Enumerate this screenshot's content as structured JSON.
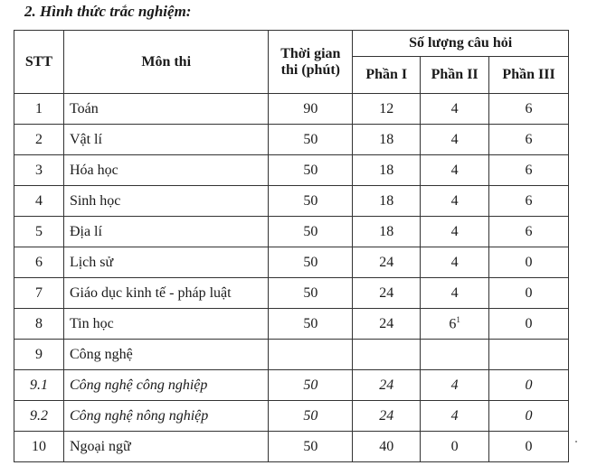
{
  "title": "2. Hình thức trắc nghiệm:",
  "headers": {
    "stt": "STT",
    "mon": "Môn thi",
    "time": "Thời gian thi (phút)",
    "group": "Số lượng câu hỏi",
    "p1": "Phần I",
    "p2": "Phần II",
    "p3": "Phần III"
  },
  "rows": [
    {
      "stt": "1",
      "mon": "Toán",
      "time": "90",
      "p1": "12",
      "p2": "4",
      "p3": "6"
    },
    {
      "stt": "2",
      "mon": "Vật lí",
      "time": "50",
      "p1": "18",
      "p2": "4",
      "p3": "6"
    },
    {
      "stt": "3",
      "mon": "Hóa học",
      "time": "50",
      "p1": "18",
      "p2": "4",
      "p3": "6"
    },
    {
      "stt": "4",
      "mon": "Sinh học",
      "time": "50",
      "p1": "18",
      "p2": "4",
      "p3": "6"
    },
    {
      "stt": "5",
      "mon": "Địa lí",
      "time": "50",
      "p1": "18",
      "p2": "4",
      "p3": "6"
    },
    {
      "stt": "6",
      "mon": "Lịch sử",
      "time": "50",
      "p1": "24",
      "p2": "4",
      "p3": "0"
    },
    {
      "stt": "7",
      "mon": "Giáo dục kinh tế - pháp luật",
      "time": "50",
      "p1": "24",
      "p2": "4",
      "p3": "0"
    },
    {
      "stt": "8",
      "mon": "Tin học",
      "time": "50",
      "p1": "24",
      "p2": "6",
      "p2_sup": "1",
      "p3": "0"
    },
    {
      "stt": "9",
      "mon": "Công nghệ",
      "time": "",
      "p1": "",
      "p2": "",
      "p3": ""
    },
    {
      "stt": "9.1",
      "mon": "Công nghệ công nghiệp",
      "time": "50",
      "p1": "24",
      "p2": "4",
      "p3": "0"
    },
    {
      "stt": "9.2",
      "mon": "Công nghệ nông nghiệp",
      "time": "50",
      "p1": "24",
      "p2": "4",
      "p3": "0"
    },
    {
      "stt": "10",
      "mon": "Ngoại ngữ",
      "time": "50",
      "p1": "40",
      "p2": "0",
      "p3": "0"
    }
  ]
}
